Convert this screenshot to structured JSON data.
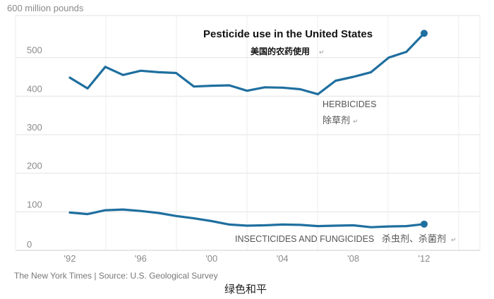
{
  "chart_data": {
    "type": "line",
    "title": "Pesticide use in the United States",
    "subtitle": "美国的农药使用",
    "ylabel": "600 million pounds",
    "ylim": [
      0,
      600
    ],
    "yticks": [
      0,
      100,
      200,
      300,
      400,
      500
    ],
    "xlim": [
      1990,
      2016
    ],
    "xticks": [
      {
        "year": 1992,
        "label": "'92"
      },
      {
        "year": 1996,
        "label": "'96"
      },
      {
        "year": 2000,
        "label": "'00"
      },
      {
        "year": 2004,
        "label": "'04"
      },
      {
        "year": 2008,
        "label": "'08"
      },
      {
        "year": 2012,
        "label": "'12"
      }
    ],
    "grid": true,
    "color": "#1f6f9f",
    "series": [
      {
        "name": "HERBICIDES",
        "name_cn": "除草剂",
        "x": [
          1992,
          1993,
          1994,
          1995,
          1996,
          1997,
          1998,
          1999,
          2000,
          2001,
          2002,
          2003,
          2004,
          2005,
          2006,
          2007,
          2008,
          2009,
          2010,
          2011,
          2012
        ],
        "values": [
          448,
          420,
          476,
          455,
          466,
          462,
          460,
          425,
          427,
          428,
          414,
          423,
          422,
          418,
          405,
          440,
          450,
          462,
          500,
          515,
          563
        ]
      },
      {
        "name": "INSECTICIDES AND FUNGICIDES",
        "name_cn": "杀虫剂、杀菌剂",
        "x": [
          1992,
          1993,
          1994,
          1995,
          1996,
          1997,
          1998,
          1999,
          2000,
          2001,
          2002,
          2003,
          2004,
          2005,
          2006,
          2007,
          2008,
          2009,
          2010,
          2011,
          2012
        ],
        "values": [
          98,
          94,
          104,
          106,
          102,
          97,
          89,
          83,
          76,
          67,
          64,
          65,
          67,
          66,
          63,
          64,
          65,
          60,
          62,
          63,
          68
        ]
      }
    ]
  },
  "footer": {
    "source": "The New York Times | Source: U.S. Geological Survey",
    "watermark": "绿色和平"
  }
}
